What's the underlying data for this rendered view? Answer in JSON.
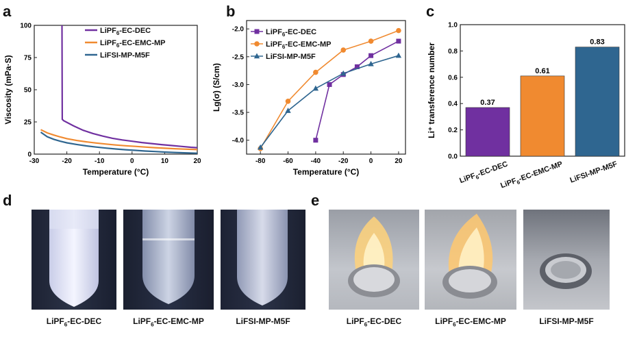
{
  "panels": {
    "a": "a",
    "b": "b",
    "c": "c",
    "d": "d",
    "e": "e"
  },
  "chart_data": [
    {
      "type": "line",
      "panel": "a",
      "xlabel": "Temperature (°C)",
      "ylabel": "Viscosity  (mPa·S)",
      "xlim": [
        -30,
        20
      ],
      "ylim": [
        0,
        100
      ],
      "xticks": [
        "-30",
        "-20",
        "-10",
        "0",
        "10",
        "20"
      ],
      "yticks": [
        "0",
        "25",
        "50",
        "75",
        "100"
      ],
      "legend_position": "top-right",
      "series": [
        {
          "name": "LiPF6-EC-DEC",
          "color": "#7030a0",
          "x": [
            -21.5,
            -21.4,
            -21,
            -18,
            -15,
            -12,
            -9,
            -6,
            -3,
            0,
            3,
            6,
            9,
            12,
            15,
            18,
            20
          ],
          "y": [
            100,
            27,
            26,
            22,
            18.5,
            16,
            14,
            12.3,
            11,
            10,
            9,
            8.2,
            7.4,
            6.7,
            6,
            5.3,
            5
          ]
        },
        {
          "name": "LiPF6-EC-EMC-MP",
          "color": "#f08a30",
          "x": [
            -28,
            -26,
            -24,
            -22,
            -20,
            -17,
            -14,
            -11,
            -8,
            -5,
            -2,
            1,
            4,
            7,
            10,
            13,
            16,
            20
          ],
          "y": [
            19,
            16.5,
            14.8,
            13.3,
            12,
            10.6,
            9.5,
            8.6,
            7.8,
            7.1,
            6.5,
            6,
            5.5,
            5,
            4.6,
            4.2,
            3.9,
            3.5
          ]
        },
        {
          "name": "LiFSI-MP-M5F",
          "color": "#2f6690",
          "x": [
            -28,
            -26,
            -24,
            -22,
            -20,
            -17,
            -14,
            -11,
            -8,
            -5,
            -2,
            1,
            4,
            7,
            10,
            13,
            16,
            20
          ],
          "y": [
            17,
            13.5,
            11.5,
            10,
            8.8,
            7.5,
            6.4,
            5.5,
            4.7,
            4,
            3.4,
            2.9,
            2.4,
            2,
            1.6,
            1.3,
            1,
            0.7
          ]
        }
      ]
    },
    {
      "type": "line",
      "panel": "b",
      "xlabel": "Temperature (°C)",
      "ylabel": "Lg(σ)  (S/cm)",
      "xlim": [
        -90,
        25
      ],
      "ylim": [
        -4.25,
        -1.85
      ],
      "xticks": [
        -80,
        -60,
        -40,
        -20,
        0,
        20
      ],
      "yticks": [
        -4.0,
        -3.5,
        -3.0,
        -2.5,
        -2.0
      ],
      "xtick_labels": [
        "-80",
        "-60",
        "-40",
        "-20",
        "0",
        "20"
      ],
      "ytick_labels": [
        "-4.0",
        "-3.5",
        "-3.0",
        "-2.5",
        "-2.0"
      ],
      "legend_position": "top-left",
      "series": [
        {
          "name": "LiPF6-EC-DEC",
          "color": "#7030a0",
          "marker": "square",
          "x": [
            -40,
            -30,
            -20,
            -10,
            0,
            20
          ],
          "y": [
            -4.0,
            -3.0,
            -2.82,
            -2.68,
            -2.48,
            -2.22
          ]
        },
        {
          "name": "LiPF6-EC-EMC-MP",
          "color": "#f08a30",
          "marker": "circle",
          "x": [
            -80,
            -60,
            -40,
            -20,
            0,
            20
          ],
          "y": [
            -4.15,
            -3.3,
            -2.78,
            -2.38,
            -2.22,
            -2.03
          ]
        },
        {
          "name": "LiFSI-MP-M5F",
          "color": "#2f6690",
          "marker": "triangle",
          "x": [
            -80,
            -60,
            -40,
            -20,
            0,
            20
          ],
          "y": [
            -4.13,
            -3.47,
            -3.07,
            -2.8,
            -2.63,
            -2.48
          ]
        }
      ]
    },
    {
      "type": "bar",
      "panel": "c",
      "ylabel": "Li⁺ transference number",
      "ylim": [
        0,
        1.0
      ],
      "yticks": [
        "0.0",
        "0.2",
        "0.4",
        "0.6",
        "0.8",
        "1.0"
      ],
      "categories": [
        "LiPF6-EC-DEC",
        "LiPF6-EC-EMC-MP",
        "LiFSI-MP-M5F"
      ],
      "values": [
        0.37,
        0.61,
        0.83
      ],
      "value_labels": [
        "0.37",
        "0.61",
        "0.83"
      ],
      "colors": [
        "#7030a0",
        "#f08a30",
        "#2f6690"
      ]
    }
  ],
  "legend_labels": {
    "s1": {
      "pre": "LiPF",
      "sub": "6",
      "post": "-EC-DEC"
    },
    "s2": {
      "pre": "LiPF",
      "sub": "6",
      "post": "-EC-EMC-MP"
    },
    "s3": {
      "pre": "LiFSI-MP-M5F",
      "sub": "",
      "post": ""
    }
  },
  "captions": {
    "d": [
      {
        "pre": "LiPF",
        "sub": "6",
        "post": "-EC-DEC"
      },
      {
        "pre": "LiPF",
        "sub": "6",
        "post": "-EC-EMC-MP"
      },
      {
        "pre": "LiFSI-MP-M5F",
        "sub": "",
        "post": ""
      }
    ],
    "e": [
      {
        "pre": "LiPF",
        "sub": "6",
        "post": "-EC-DEC"
      },
      {
        "pre": "LiPF",
        "sub": "6",
        "post": "-EC-EMC-MP"
      },
      {
        "pre": "LiFSI-MP-M5F",
        "sub": "",
        "post": ""
      }
    ]
  },
  "colors": {
    "purple": "#7030a0",
    "orange": "#f08a30",
    "blue": "#2f6690"
  }
}
